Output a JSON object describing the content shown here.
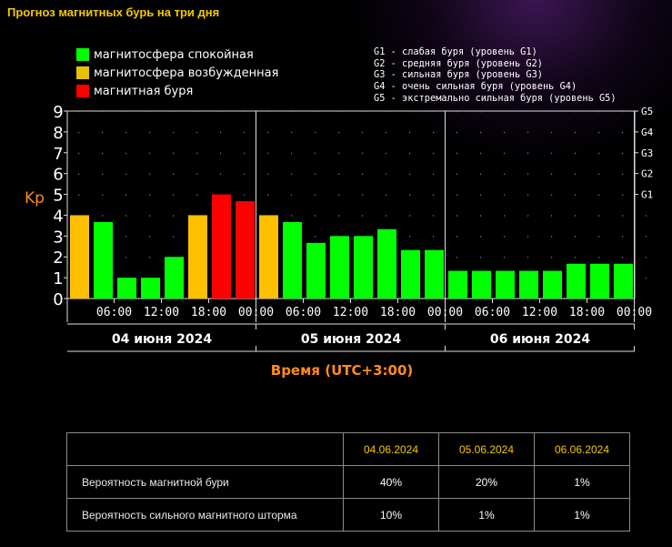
{
  "page_title": "Прогноз магнитных бурь на три дня",
  "legend": [
    {
      "label": "магнитосфера спокойная",
      "color": "#00ff00"
    },
    {
      "label": "магнитосфера возбужденная",
      "color": "#e6c200"
    },
    {
      "label": "магнитная буря",
      "color": "#ff0000"
    }
  ],
  "storm_levels": [
    "G1 - слабая буря (уровень G1)",
    "G2 - средняя буря (уровень G2)",
    "G3 - сильная буря (уровень G3)",
    "G4 - очень сильная буря (уровень G4)",
    "G5 - экстремально сильная буря (уровень G5)"
  ],
  "colors": {
    "quiet": "#00ff00",
    "active": "#ffc000",
    "storm": "#ff0000",
    "accent": "#ff8c1a",
    "title": "#f5c800"
  },
  "chart_data": {
    "type": "bar",
    "ylabel": "Kp",
    "xlabel": "Время (UTC+3:00)",
    "ylim": [
      0,
      9
    ],
    "yticks": [
      "0",
      "1",
      "2",
      "3",
      "4",
      "5",
      "6",
      "7",
      "8",
      "9"
    ],
    "right_ticks": [
      {
        "label": "G1",
        "value": 5
      },
      {
        "label": "G2",
        "value": 6
      },
      {
        "label": "G3",
        "value": 7
      },
      {
        "label": "G4",
        "value": 8
      },
      {
        "label": "G5",
        "value": 9
      }
    ],
    "time_labels": [
      "06:00",
      "12:00",
      "18:00",
      "00:00",
      "06:00",
      "12:00",
      "18:00",
      "00:00",
      "06:00",
      "12:00",
      "18:00",
      "00:00"
    ],
    "days": [
      "04 июня 2024",
      "05 июня 2024",
      "06 июня 2024"
    ],
    "values": [
      4.0,
      3.67,
      1.0,
      1.0,
      2.0,
      4.0,
      5.0,
      4.67,
      4.0,
      3.67,
      2.67,
      3.0,
      3.0,
      3.33,
      2.33,
      2.33,
      1.33,
      1.33,
      1.33,
      1.33,
      1.33,
      1.67,
      1.67,
      1.67
    ],
    "levels": [
      "active",
      "quiet",
      "quiet",
      "quiet",
      "quiet",
      "active",
      "storm",
      "storm",
      "active",
      "quiet",
      "quiet",
      "quiet",
      "quiet",
      "quiet",
      "quiet",
      "quiet",
      "quiet",
      "quiet",
      "quiet",
      "quiet",
      "quiet",
      "quiet",
      "quiet",
      "quiet"
    ],
    "grid": true
  },
  "table": {
    "headers": [
      "04.06.2024",
      "05.06.2024",
      "06.06.2024"
    ],
    "rows": [
      {
        "label": "Вероятность магнитной бури",
        "values": [
          "40%",
          "20%",
          "1%"
        ]
      },
      {
        "label": "Вероятность сильного магнитного шторма",
        "values": [
          "10%",
          "1%",
          "1%"
        ]
      }
    ]
  }
}
